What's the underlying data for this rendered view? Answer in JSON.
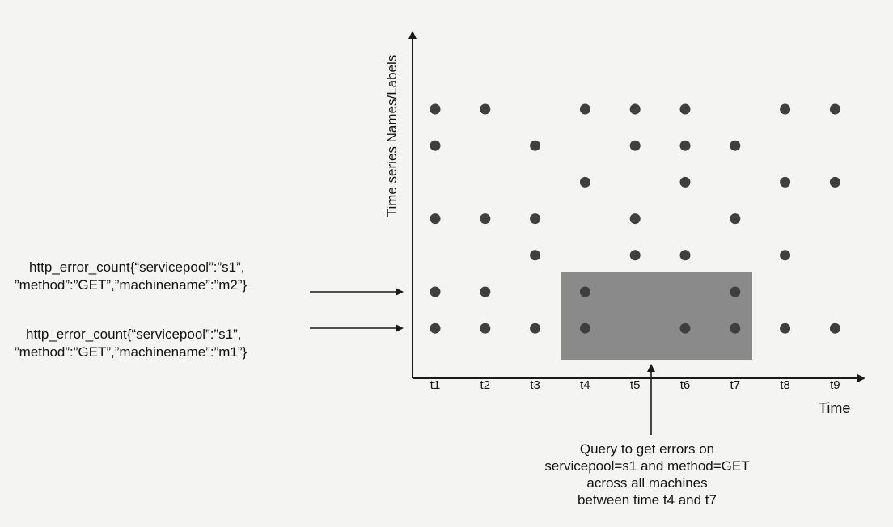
{
  "diagram": {
    "y_axis_label": "Time series Names/Labels",
    "x_axis_label": "Time",
    "time_labels": [
      "t1",
      "t2",
      "t3",
      "t4",
      "t5",
      "t6",
      "t7",
      "t8",
      "t9"
    ],
    "series_labels": [
      {
        "line1": "http_error_count{“servicepool”:”s1”,",
        "line2": "”method”:”GET”,”machinename”:”m2”}"
      },
      {
        "line1": "http_error_count{“servicepool”:”s1”,",
        "line2": "”method”:”GET”,”machinename”:”m1”}"
      }
    ],
    "query": {
      "line1": "Query to get errors on",
      "line2": "servicepool=s1 and method=GET",
      "line3": "across all machines",
      "line4": "between time t4 and t7"
    },
    "colors": {
      "point": "#3f3f3f",
      "highlight": "#8a8a8a",
      "axis": "#1a1a1a",
      "background": "#f4f4f2"
    },
    "grid_rows": [
      [
        1,
        2,
        4,
        5,
        6,
        8,
        9
      ],
      [
        1,
        3,
        5,
        6,
        7
      ],
      [
        4,
        6,
        8,
        9
      ],
      [
        1,
        2,
        3,
        5,
        7
      ],
      [
        3,
        5,
        6,
        8
      ],
      [
        1,
        2,
        4,
        7
      ],
      [
        1,
        2,
        3,
        4,
        6,
        7,
        8,
        9
      ]
    ],
    "highlight_range": {
      "from": "t4",
      "to": "t7"
    }
  }
}
